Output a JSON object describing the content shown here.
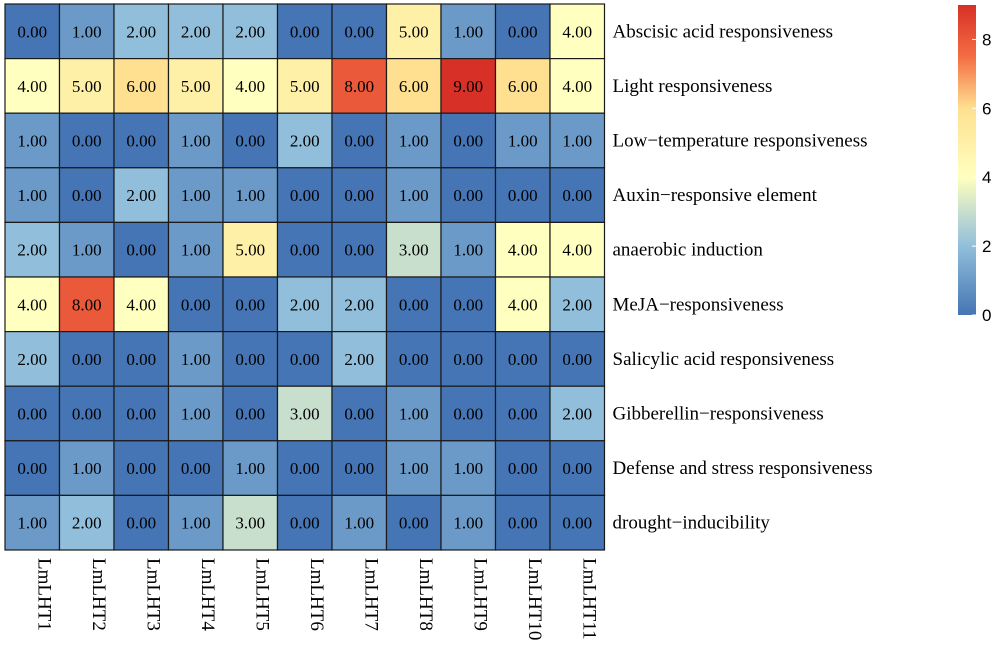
{
  "chart_data": {
    "type": "heatmap",
    "columns": [
      "LmLHT1",
      "LmLHT2",
      "LmLHT3",
      "LmLHT4",
      "LmLHT5",
      "LmLHT6",
      "LmLHT7",
      "LmLHT8",
      "LmLHT9",
      "LmLHT10",
      "LmLHT11"
    ],
    "rows": [
      "Abscisic acid responsiveness",
      "Light responsiveness",
      "Low−temperature responsiveness",
      "Auxin−responsive element",
      "anaerobic induction",
      "MeJA−responsiveness",
      "Salicylic acid responsiveness",
      "Gibberellin−responsiveness",
      "Defense and stress responsiveness",
      "drought−inducibility"
    ],
    "values": [
      [
        0,
        1,
        2,
        2,
        2,
        0,
        0,
        5,
        1,
        0,
        4
      ],
      [
        4,
        5,
        6,
        5,
        4,
        5,
        8,
        6,
        9,
        6,
        4
      ],
      [
        1,
        0,
        0,
        1,
        0,
        2,
        0,
        1,
        0,
        1,
        1
      ],
      [
        1,
        0,
        2,
        1,
        1,
        0,
        0,
        1,
        0,
        0,
        0
      ],
      [
        2,
        1,
        0,
        1,
        5,
        0,
        0,
        3,
        1,
        4,
        4
      ],
      [
        4,
        8,
        4,
        0,
        0,
        2,
        2,
        0,
        0,
        4,
        2
      ],
      [
        2,
        0,
        0,
        1,
        0,
        0,
        2,
        0,
        0,
        0,
        0
      ],
      [
        0,
        0,
        0,
        1,
        0,
        3,
        0,
        1,
        0,
        0,
        2
      ],
      [
        0,
        1,
        0,
        0,
        1,
        0,
        0,
        1,
        1,
        0,
        0
      ],
      [
        1,
        2,
        0,
        1,
        3,
        0,
        1,
        0,
        1,
        0,
        0
      ]
    ],
    "value_format": "2 decimals",
    "color_scale": {
      "min": 0,
      "max": 9,
      "stops": [
        {
          "value": 0,
          "color": "#4575b4"
        },
        {
          "value": 2,
          "color": "#91bfdb"
        },
        {
          "value": 4,
          "color": "#ffffbf"
        },
        {
          "value": 6,
          "color": "#fee090"
        },
        {
          "value": 7.5,
          "color": "#f46d43"
        },
        {
          "value": 9,
          "color": "#d73027"
        }
      ]
    },
    "legend": {
      "ticks": [
        "0",
        "2",
        "4",
        "6",
        "8"
      ],
      "tick_values": [
        0,
        2,
        4,
        6,
        8
      ],
      "placement": "right"
    },
    "title": "",
    "xlabel": "",
    "ylabel": ""
  }
}
